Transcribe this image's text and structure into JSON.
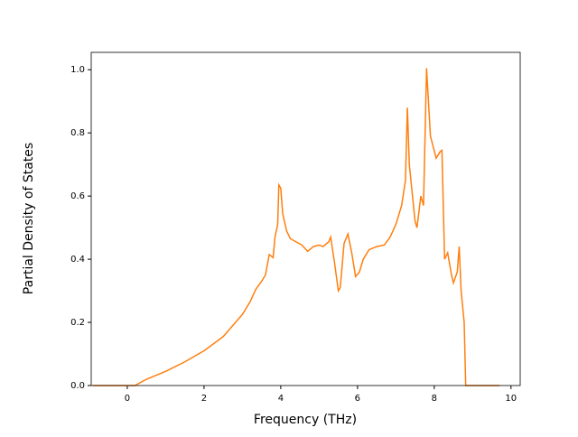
{
  "chart_data": {
    "type": "line",
    "xlabel": "Frequency (THz)",
    "ylabel": "Partial Density of States",
    "xlim": [
      -0.94,
      10.24
    ],
    "ylim": [
      0,
      1.055
    ],
    "xticks": [
      0,
      2,
      4,
      6,
      8,
      10
    ],
    "yticks": [
      {
        "value": 0,
        "label": "0.0"
      },
      {
        "value": 0.2,
        "label": "0.2"
      },
      {
        "value": 0.4,
        "label": "0.4"
      },
      {
        "value": 0.6,
        "label": "0.6"
      },
      {
        "value": 0.8,
        "label": "0.8"
      },
      {
        "value": 1.0,
        "label": "1.0"
      }
    ],
    "x": [
      -0.9,
      0.2,
      0.5,
      0.8,
      1.0,
      1.5,
      2.0,
      2.5,
      3.0,
      3.2,
      3.35,
      3.5,
      3.6,
      3.7,
      3.8,
      3.85,
      3.92,
      3.95,
      4.0,
      4.05,
      4.15,
      4.25,
      4.4,
      4.55,
      4.7,
      4.85,
      5.0,
      5.1,
      5.25,
      5.3,
      5.4,
      5.5,
      5.55,
      5.65,
      5.75,
      5.85,
      5.95,
      6.05,
      6.15,
      6.3,
      6.5,
      6.7,
      6.85,
      7.0,
      7.15,
      7.25,
      7.3,
      7.35,
      7.5,
      7.55,
      7.65,
      7.72,
      7.8,
      7.9,
      8.05,
      8.15,
      8.2,
      8.27,
      8.35,
      8.45,
      8.5,
      8.6,
      8.65,
      8.7,
      8.78,
      8.82,
      9.7
    ],
    "series": [
      {
        "color": "#ff7f0e",
        "values": [
          0,
          0,
          0.02,
          0.035,
          0.045,
          0.075,
          0.11,
          0.155,
          0.225,
          0.265,
          0.305,
          0.33,
          0.35,
          0.415,
          0.405,
          0.47,
          0.51,
          0.635,
          0.625,
          0.545,
          0.49,
          0.465,
          0.455,
          0.445,
          0.425,
          0.44,
          0.445,
          0.44,
          0.455,
          0.47,
          0.39,
          0.3,
          0.31,
          0.45,
          0.48,
          0.42,
          0.345,
          0.36,
          0.4,
          0.43,
          0.44,
          0.445,
          0.47,
          0.51,
          0.57,
          0.65,
          0.88,
          0.7,
          0.52,
          0.5,
          0.6,
          0.57,
          1.005,
          0.79,
          0.72,
          0.74,
          0.745,
          0.4,
          0.42,
          0.35,
          0.325,
          0.36,
          0.44,
          0.3,
          0.2,
          0,
          0
        ]
      }
    ]
  }
}
